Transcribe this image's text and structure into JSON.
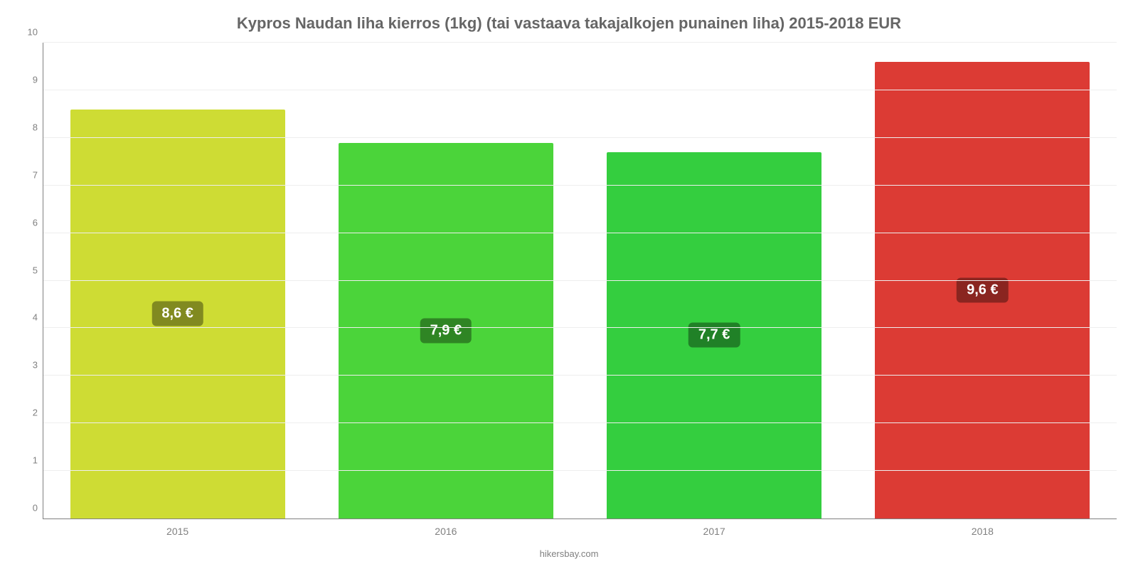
{
  "chart": {
    "type": "bar",
    "title": "Kypros Naudan liha kierros (1kg) (tai vastaava takajalkojen punainen liha) 2015-2018 EUR",
    "title_fontsize": 22,
    "title_color": "#666666",
    "background_color": "#ffffff",
    "axis_color": "#808080",
    "grid_color": "#eeeeee",
    "tick_label_color": "#808080",
    "tick_label_fontsize": 13,
    "value_label_fontsize": 20,
    "value_label_color": "#ffffff",
    "ylim": [
      0,
      10
    ],
    "yticks": [
      0,
      1,
      2,
      3,
      4,
      5,
      6,
      7,
      8,
      9,
      10
    ],
    "categories": [
      "2015",
      "2016",
      "2017",
      "2018"
    ],
    "values": [
      8.6,
      7.9,
      7.7,
      9.6
    ],
    "value_labels": [
      "8,6 €",
      "7,9 €",
      "7,7 €",
      "9,6 €"
    ],
    "bar_colors": [
      "#cedc34",
      "#4bd43a",
      "#34ce3f",
      "#dc3b34"
    ],
    "badge_colors": [
      "#818a20",
      "#2f8524",
      "#208127",
      "#8a2520"
    ],
    "bar_width_pct": 20,
    "bar_gap_pct": 5,
    "credit": "hikersbay.com"
  }
}
